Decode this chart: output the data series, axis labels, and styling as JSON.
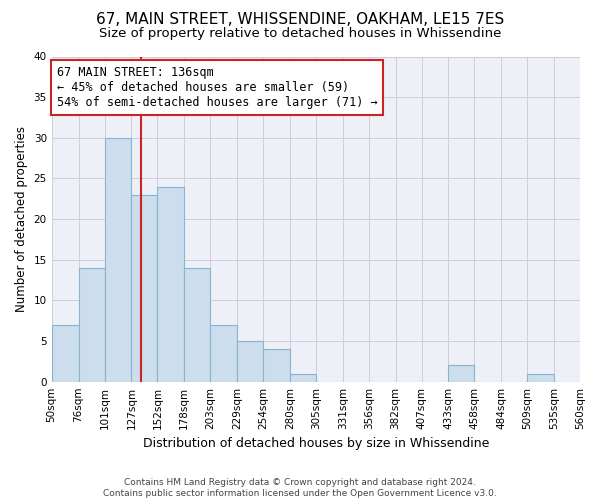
{
  "title": "67, MAIN STREET, WHISSENDINE, OAKHAM, LE15 7ES",
  "subtitle": "Size of property relative to detached houses in Whissendine",
  "xlabel": "Distribution of detached houses by size in Whissendine",
  "ylabel": "Number of detached properties",
  "bin_edges": [
    50,
    76,
    101,
    127,
    152,
    178,
    203,
    229,
    254,
    280,
    305,
    331,
    356,
    382,
    407,
    433,
    458,
    484,
    509,
    535,
    560
  ],
  "bin_counts": [
    7,
    14,
    30,
    23,
    24,
    14,
    7,
    5,
    4,
    1,
    0,
    0,
    0,
    0,
    0,
    2,
    0,
    0,
    1,
    0
  ],
  "bar_color": "#ccdded",
  "bar_edge_color": "#8ab4cc",
  "bar_linewidth": 0.8,
  "vline_x": 136,
  "vline_color": "#cc2222",
  "vline_linewidth": 1.5,
  "annotation_text": "67 MAIN STREET: 136sqm\n← 45% of detached houses are smaller (59)\n54% of semi-detached houses are larger (71) →",
  "annotation_box_color": "white",
  "annotation_box_edge_color": "#cc2222",
  "ylim": [
    0,
    40
  ],
  "yticks": [
    0,
    5,
    10,
    15,
    20,
    25,
    30,
    35,
    40
  ],
  "grid_color": "#ccccdd",
  "bg_color": "#ffffff",
  "plot_bg_color": "#eef0f8",
  "footer_text": "Contains HM Land Registry data © Crown copyright and database right 2024.\nContains public sector information licensed under the Open Government Licence v3.0.",
  "title_fontsize": 11,
  "subtitle_fontsize": 9.5,
  "xlabel_fontsize": 9,
  "ylabel_fontsize": 8.5,
  "tick_fontsize": 7.5,
  "annotation_fontsize": 8.5,
  "footer_fontsize": 6.5
}
